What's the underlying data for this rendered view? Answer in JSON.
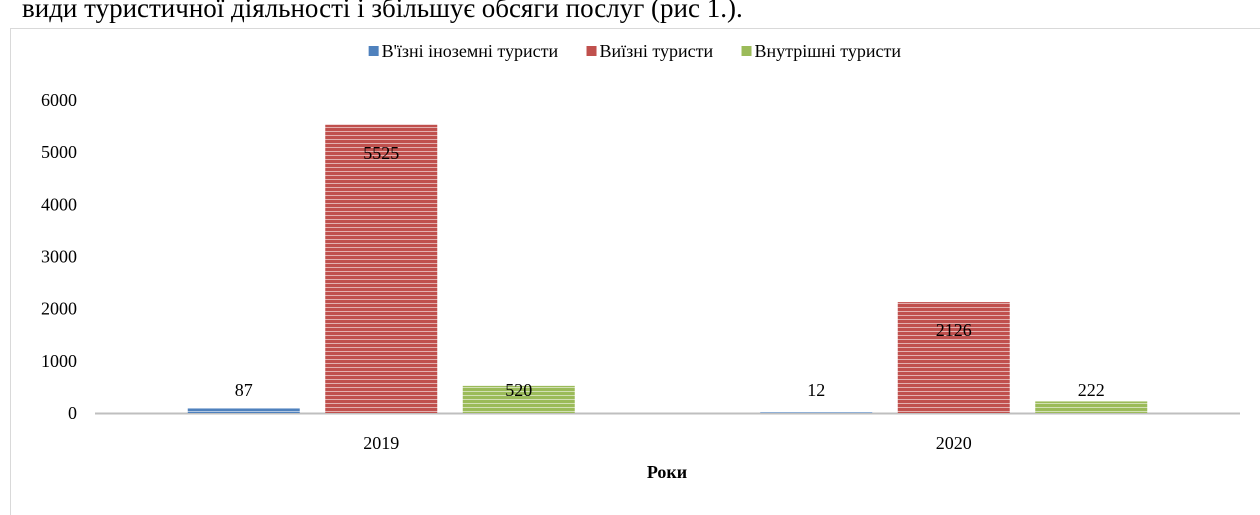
{
  "context_text": "види туристичної діяльності і збільшує обсяги послуг (рис 1.).",
  "chart_data": {
    "type": "bar",
    "categories": [
      "2019",
      "2020"
    ],
    "series": [
      {
        "name": "В'їзні іноземні туристи",
        "color": "#4f81bd",
        "values": [
          87,
          12
        ]
      },
      {
        "name": "Виїзні туристи",
        "color": "#c0504d",
        "values": [
          5525,
          2126
        ]
      },
      {
        "name": "Внутрішні туристи",
        "color": "#9bbb59",
        "values": [
          520,
          222
        ]
      }
    ],
    "xlabel": "Роки",
    "ylim": [
      0,
      6000
    ],
    "yticks": [
      0,
      1000,
      2000,
      3000,
      4000,
      5000,
      6000
    ],
    "grid": false,
    "legend": "top"
  }
}
